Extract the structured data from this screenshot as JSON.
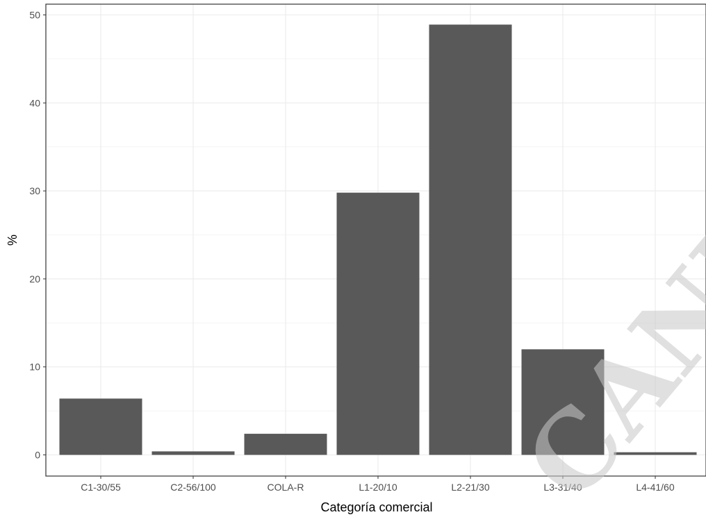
{
  "chart_data": {
    "type": "bar",
    "title": "",
    "xlabel": "Categoría comercial",
    "ylabel": "%",
    "categories": [
      "C1-30/55",
      "C2-56/100",
      "COLA-R",
      "L1-20/10",
      "L2-21/30",
      "L3-31/40",
      "L4-41/60"
    ],
    "values": [
      6.4,
      0.4,
      2.4,
      29.8,
      48.9,
      12.0,
      0.3
    ],
    "ylim": [
      0,
      50
    ],
    "yticks": [
      "0",
      "10",
      "20",
      "30",
      "40",
      "50"
    ],
    "grid": true,
    "legend": "none",
    "bar_color": "#595959",
    "grid_color": "#ebebeb"
  },
  "watermark": {
    "text": "CANDIDATE"
  }
}
